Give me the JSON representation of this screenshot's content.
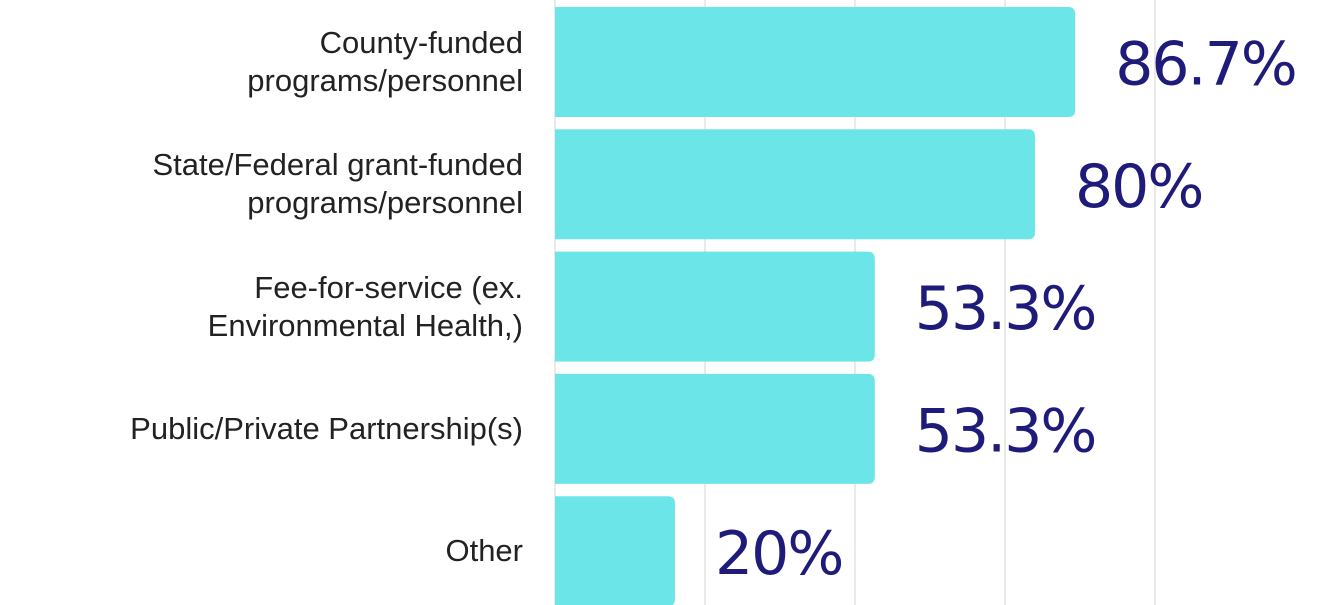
{
  "chart_data": {
    "type": "hbar",
    "categories": [
      "County-funded\nprograms/personnel",
      "State/Federal grant-funded\nprograms/personnel",
      "Fee-for-service (ex.\nEnvironmental Health,)",
      "Public/Private Partnership(s)",
      "Other"
    ],
    "values": [
      86.7,
      80,
      53.3,
      53.3,
      20
    ],
    "value_labels": [
      "86.7%",
      "80%",
      "53.3%",
      "53.3%",
      "20%"
    ],
    "color": "#6ce5e8",
    "label_color": "#1f1b7a",
    "xlim": [
      0,
      100
    ],
    "xticks": [
      0,
      25,
      50,
      75,
      100
    ],
    "grid": true
  }
}
